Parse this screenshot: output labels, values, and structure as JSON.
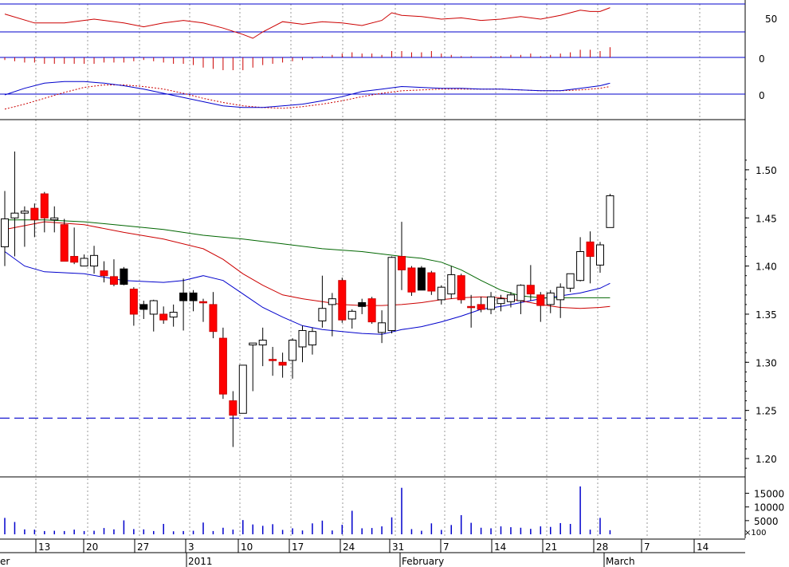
{
  "chart_data": {
    "type": "candlestick",
    "colors": {
      "up_fill": "#ffffff",
      "down_fill": "#ff0000",
      "down_fill_alt": "#000000",
      "ma_short": "#cc0000",
      "ma_long": "#006600",
      "band": "#0000cc",
      "volume": "#0000cc",
      "grid": "#999999",
      "axis": "#000000"
    },
    "date_axis": {
      "day_labels": [
        "13",
        "20",
        "27",
        "3",
        "10",
        "17",
        "24",
        "31",
        "7",
        "14",
        "21",
        "28",
        "7",
        "14"
      ],
      "month_labels": [
        "er",
        "2011",
        "February",
        "March"
      ]
    },
    "price_panel": {
      "ylim": [
        1.18,
        1.52
      ],
      "ticks": [
        "1.20",
        "1.25",
        "1.30",
        "1.35",
        "1.40",
        "1.45",
        "1.50"
      ],
      "tick_values": [
        1.2,
        1.25,
        1.3,
        1.35,
        1.4,
        1.45,
        1.5
      ],
      "support_line": 1.242,
      "candles": [
        {
          "i": 0,
          "o": 1.42,
          "h": 1.478,
          "l": 1.4,
          "c": 1.449
        },
        {
          "i": 1,
          "o": 1.45,
          "h": 1.519,
          "l": 1.41,
          "c": 1.455
        },
        {
          "i": 2,
          "o": 1.455,
          "h": 1.462,
          "l": 1.42,
          "c": 1.457
        },
        {
          "i": 3,
          "o": 1.46,
          "h": 1.465,
          "l": 1.43,
          "c": 1.448
        },
        {
          "i": 4,
          "o": 1.475,
          "h": 1.477,
          "l": 1.435,
          "c": 1.45
        },
        {
          "i": 5,
          "o": 1.448,
          "h": 1.462,
          "l": 1.435,
          "c": 1.45
        },
        {
          "i": 6,
          "o": 1.443,
          "h": 1.449,
          "l": 1.405,
          "c": 1.405
        },
        {
          "i": 7,
          "o": 1.41,
          "h": 1.44,
          "l": 1.402,
          "c": 1.404
        },
        {
          "i": 8,
          "o": 1.4,
          "h": 1.412,
          "l": 1.402,
          "c": 1.408
        },
        {
          "i": 9,
          "o": 1.4,
          "h": 1.421,
          "l": 1.392,
          "c": 1.411
        },
        {
          "i": 10,
          "o": 1.395,
          "h": 1.405,
          "l": 1.383,
          "c": 1.39
        },
        {
          "i": 11,
          "o": 1.389,
          "h": 1.407,
          "l": 1.379,
          "c": 1.381
        },
        {
          "i": 12,
          "o": 1.397,
          "h": 1.399,
          "l": 1.38,
          "c": 1.381,
          "dark": true
        },
        {
          "i": 13,
          "o": 1.376,
          "h": 1.378,
          "l": 1.338,
          "c": 1.35
        },
        {
          "i": 14,
          "o": 1.36,
          "h": 1.364,
          "l": 1.345,
          "c": 1.355,
          "dark": true
        },
        {
          "i": 15,
          "o": 1.35,
          "h": 1.365,
          "l": 1.332,
          "c": 1.364
        },
        {
          "i": 16,
          "o": 1.35,
          "h": 1.358,
          "l": 1.34,
          "c": 1.344
        },
        {
          "i": 17,
          "o": 1.347,
          "h": 1.36,
          "l": 1.337,
          "c": 1.352
        },
        {
          "i": 18,
          "o": 1.372,
          "h": 1.387,
          "l": 1.333,
          "c": 1.364,
          "dark": true
        },
        {
          "i": 19,
          "o": 1.372,
          "h": 1.375,
          "l": 1.353,
          "c": 1.364,
          "dark": true
        },
        {
          "i": 20,
          "o": 1.363,
          "h": 1.366,
          "l": 1.342,
          "c": 1.362
        },
        {
          "i": 21,
          "o": 1.36,
          "h": 1.373,
          "l": 1.325,
          "c": 1.332
        },
        {
          "i": 22,
          "o": 1.325,
          "h": 1.336,
          "l": 1.262,
          "c": 1.267
        },
        {
          "i": 23,
          "o": 1.26,
          "h": 1.27,
          "l": 1.212,
          "c": 1.245
        },
        {
          "i": 24,
          "o": 1.247,
          "h": 1.297,
          "l": 1.247,
          "c": 1.297
        },
        {
          "i": 25,
          "o": 1.318,
          "h": 1.32,
          "l": 1.27,
          "c": 1.32
        },
        {
          "i": 26,
          "o": 1.318,
          "h": 1.336,
          "l": 1.296,
          "c": 1.323
        },
        {
          "i": 27,
          "o": 1.303,
          "h": 1.316,
          "l": 1.286,
          "c": 1.302
        },
        {
          "i": 28,
          "o": 1.3,
          "h": 1.31,
          "l": 1.284,
          "c": 1.297
        },
        {
          "i": 29,
          "o": 1.302,
          "h": 1.325,
          "l": 1.283,
          "c": 1.323
        },
        {
          "i": 30,
          "o": 1.316,
          "h": 1.338,
          "l": 1.3,
          "c": 1.333
        },
        {
          "i": 31,
          "o": 1.318,
          "h": 1.336,
          "l": 1.308,
          "c": 1.332
        },
        {
          "i": 32,
          "o": 1.343,
          "h": 1.39,
          "l": 1.336,
          "c": 1.356
        },
        {
          "i": 33,
          "o": 1.36,
          "h": 1.372,
          "l": 1.327,
          "c": 1.366
        },
        {
          "i": 34,
          "o": 1.385,
          "h": 1.388,
          "l": 1.341,
          "c": 1.344
        },
        {
          "i": 35,
          "o": 1.345,
          "h": 1.355,
          "l": 1.335,
          "c": 1.353
        },
        {
          "i": 36,
          "o": 1.362,
          "h": 1.366,
          "l": 1.35,
          "c": 1.358,
          "dark": true
        },
        {
          "i": 37,
          "o": 1.366,
          "h": 1.368,
          "l": 1.34,
          "c": 1.342
        },
        {
          "i": 38,
          "o": 1.331,
          "h": 1.354,
          "l": 1.32,
          "c": 1.341
        },
        {
          "i": 39,
          "o": 1.333,
          "h": 1.41,
          "l": 1.33,
          "c": 1.409
        },
        {
          "i": 40,
          "o": 1.41,
          "h": 1.446,
          "l": 1.375,
          "c": 1.396
        },
        {
          "i": 41,
          "o": 1.398,
          "h": 1.4,
          "l": 1.369,
          "c": 1.373
        },
        {
          "i": 42,
          "o": 1.398,
          "h": 1.4,
          "l": 1.375,
          "c": 1.375,
          "dark": true
        },
        {
          "i": 43,
          "o": 1.393,
          "h": 1.395,
          "l": 1.37,
          "c": 1.374
        },
        {
          "i": 44,
          "o": 1.365,
          "h": 1.38,
          "l": 1.36,
          "c": 1.378
        },
        {
          "i": 45,
          "o": 1.371,
          "h": 1.4,
          "l": 1.366,
          "c": 1.391
        },
        {
          "i": 46,
          "o": 1.39,
          "h": 1.392,
          "l": 1.361,
          "c": 1.365
        },
        {
          "i": 47,
          "o": 1.358,
          "h": 1.37,
          "l": 1.336,
          "c": 1.357
        },
        {
          "i": 48,
          "o": 1.36,
          "h": 1.368,
          "l": 1.352,
          "c": 1.355
        },
        {
          "i": 49,
          "o": 1.355,
          "h": 1.373,
          "l": 1.35,
          "c": 1.368
        },
        {
          "i": 50,
          "o": 1.361,
          "h": 1.37,
          "l": 1.353,
          "c": 1.366
        },
        {
          "i": 51,
          "o": 1.363,
          "h": 1.373,
          "l": 1.357,
          "c": 1.37
        },
        {
          "i": 52,
          "o": 1.364,
          "h": 1.381,
          "l": 1.35,
          "c": 1.38
        },
        {
          "i": 53,
          "o": 1.38,
          "h": 1.401,
          "l": 1.364,
          "c": 1.371
        },
        {
          "i": 54,
          "o": 1.37,
          "h": 1.373,
          "l": 1.342,
          "c": 1.359
        },
        {
          "i": 55,
          "o": 1.36,
          "h": 1.375,
          "l": 1.351,
          "c": 1.372
        },
        {
          "i": 56,
          "o": 1.365,
          "h": 1.382,
          "l": 1.346,
          "c": 1.378
        },
        {
          "i": 57,
          "o": 1.377,
          "h": 1.392,
          "l": 1.373,
          "c": 1.392
        },
        {
          "i": 58,
          "o": 1.385,
          "h": 1.43,
          "l": 1.384,
          "c": 1.415
        },
        {
          "i": 59,
          "o": 1.425,
          "h": 1.436,
          "l": 1.382,
          "c": 1.41
        },
        {
          "i": 60,
          "o": 1.401,
          "h": 1.425,
          "l": 1.393,
          "c": 1.422
        },
        {
          "i": 61,
          "o": 1.44,
          "h": 1.475,
          "l": 1.44,
          "c": 1.473
        }
      ],
      "ma_short": [
        [
          0,
          1.438
        ],
        [
          4,
          1.446
        ],
        [
          8,
          1.443
        ],
        [
          12,
          1.435
        ],
        [
          16,
          1.428
        ],
        [
          20,
          1.418
        ],
        [
          22,
          1.407
        ],
        [
          24,
          1.392
        ],
        [
          26,
          1.38
        ],
        [
          28,
          1.37
        ],
        [
          30,
          1.366
        ],
        [
          32,
          1.363
        ],
        [
          34,
          1.36
        ],
        [
          36,
          1.359
        ],
        [
          38,
          1.359
        ],
        [
          40,
          1.36
        ],
        [
          42,
          1.362
        ],
        [
          44,
          1.365
        ],
        [
          46,
          1.367
        ],
        [
          48,
          1.368
        ],
        [
          50,
          1.367
        ],
        [
          52,
          1.364
        ],
        [
          54,
          1.36
        ],
        [
          56,
          1.357
        ],
        [
          58,
          1.356
        ],
        [
          60,
          1.357
        ],
        [
          61,
          1.358
        ]
      ],
      "ma_long": [
        [
          0,
          1.448
        ],
        [
          4,
          1.448
        ],
        [
          8,
          1.446
        ],
        [
          12,
          1.442
        ],
        [
          16,
          1.438
        ],
        [
          20,
          1.432
        ],
        [
          24,
          1.428
        ],
        [
          28,
          1.423
        ],
        [
          32,
          1.418
        ],
        [
          36,
          1.415
        ],
        [
          40,
          1.41
        ],
        [
          42,
          1.408
        ],
        [
          44,
          1.404
        ],
        [
          46,
          1.396
        ],
        [
          48,
          1.385
        ],
        [
          50,
          1.375
        ],
        [
          52,
          1.369
        ],
        [
          54,
          1.367
        ],
        [
          58,
          1.367
        ],
        [
          61,
          1.367
        ]
      ],
      "lower_band": [
        [
          0,
          1.415
        ],
        [
          2,
          1.4
        ],
        [
          4,
          1.394
        ],
        [
          8,
          1.392
        ],
        [
          12,
          1.385
        ],
        [
          16,
          1.383
        ],
        [
          18,
          1.385
        ],
        [
          20,
          1.39
        ],
        [
          22,
          1.385
        ],
        [
          24,
          1.371
        ],
        [
          26,
          1.357
        ],
        [
          28,
          1.347
        ],
        [
          30,
          1.338
        ],
        [
          32,
          1.334
        ],
        [
          34,
          1.332
        ],
        [
          36,
          1.33
        ],
        [
          38,
          1.329
        ],
        [
          40,
          1.334
        ],
        [
          42,
          1.337
        ],
        [
          44,
          1.342
        ],
        [
          46,
          1.348
        ],
        [
          48,
          1.355
        ],
        [
          50,
          1.358
        ],
        [
          52,
          1.362
        ],
        [
          54,
          1.366
        ],
        [
          56,
          1.369
        ],
        [
          58,
          1.372
        ],
        [
          60,
          1.377
        ],
        [
          61,
          1.382
        ]
      ]
    },
    "volume_panel": {
      "ylim": [
        0,
        18000
      ],
      "ticks": [
        "5000",
        "10000",
        "15000"
      ],
      "tick_values": [
        5000,
        10000,
        15000
      ],
      "multiplier_label": "×100",
      "values": [
        6000,
        4500,
        1800,
        1700,
        1200,
        1300,
        1200,
        1700,
        1200,
        1300,
        2300,
        1800,
        5100,
        1900,
        1800,
        1200,
        3800,
        1100,
        1200,
        1300,
        4300,
        1200,
        2400,
        1700,
        5200,
        3600,
        3100,
        3700,
        1600,
        2200,
        1400,
        4000,
        5000,
        1400,
        3500,
        8600,
        2200,
        2300,
        2900,
        6200,
        17000,
        1900,
        1300,
        4000,
        1600,
        3400,
        7000,
        4200,
        2400,
        2200,
        2900,
        2600,
        2400,
        2000,
        2900,
        2700,
        4100,
        3800,
        17500,
        1700,
        6000,
        1500
      ]
    },
    "rsi_panel": {
      "ticks": [
        "50"
      ],
      "values": [
        [
          0,
          64
        ],
        [
          3,
          57
        ],
        [
          6,
          57
        ],
        [
          9,
          60
        ],
        [
          12,
          57
        ],
        [
          14,
          54
        ],
        [
          16,
          57
        ],
        [
          18,
          59
        ],
        [
          20,
          57
        ],
        [
          22,
          53
        ],
        [
          24,
          48
        ],
        [
          25,
          45
        ],
        [
          26,
          50
        ],
        [
          28,
          58
        ],
        [
          30,
          56
        ],
        [
          32,
          58
        ],
        [
          34,
          57
        ],
        [
          36,
          55
        ],
        [
          38,
          59
        ],
        [
          39,
          65
        ],
        [
          40,
          63
        ],
        [
          42,
          62
        ],
        [
          44,
          60
        ],
        [
          46,
          61
        ],
        [
          48,
          59
        ],
        [
          50,
          60
        ],
        [
          52,
          62
        ],
        [
          54,
          60
        ],
        [
          56,
          63
        ],
        [
          58,
          67
        ],
        [
          59,
          66
        ],
        [
          60,
          66
        ],
        [
          61,
          69
        ]
      ]
    },
    "macd_hist_panel": {
      "ticks": [
        "0"
      ],
      "values": [
        -2,
        -3,
        -4,
        -4,
        -5,
        -5,
        -5,
        -5,
        -5,
        -5,
        -4,
        -4,
        -4,
        -3,
        -2,
        -3,
        -4,
        -5,
        -5,
        -6,
        -8,
        -9,
        -10,
        -10,
        -10,
        -8,
        -6,
        -5,
        -4,
        -3,
        -2,
        -1,
        1,
        2,
        3,
        4,
        3,
        3,
        2,
        5,
        5,
        4,
        4,
        5,
        3,
        2,
        1,
        1,
        0,
        1,
        1,
        2,
        2,
        3,
        1,
        2,
        3,
        4,
        6,
        6,
        5,
        8
      ]
    },
    "macd_panel": {
      "ticks": [
        "0"
      ],
      "macd": [
        [
          0,
          -1
        ],
        [
          2,
          7
        ],
        [
          4,
          13
        ],
        [
          6,
          15
        ],
        [
          8,
          15
        ],
        [
          10,
          13
        ],
        [
          12,
          10
        ],
        [
          14,
          6
        ],
        [
          16,
          1
        ],
        [
          18,
          -4
        ],
        [
          20,
          -9
        ],
        [
          22,
          -14
        ],
        [
          24,
          -16
        ],
        [
          26,
          -16
        ],
        [
          28,
          -14
        ],
        [
          30,
          -12
        ],
        [
          32,
          -8
        ],
        [
          34,
          -3
        ],
        [
          36,
          3
        ],
        [
          38,
          6
        ],
        [
          40,
          9
        ],
        [
          42,
          8
        ],
        [
          44,
          7
        ],
        [
          46,
          7
        ],
        [
          48,
          6
        ],
        [
          50,
          6
        ],
        [
          52,
          5
        ],
        [
          54,
          4
        ],
        [
          56,
          4
        ],
        [
          58,
          7
        ],
        [
          60,
          10
        ],
        [
          61,
          13
        ]
      ],
      "signal": [
        [
          0,
          -18
        ],
        [
          2,
          -12
        ],
        [
          4,
          -5
        ],
        [
          6,
          2
        ],
        [
          8,
          8
        ],
        [
          10,
          11
        ],
        [
          12,
          11
        ],
        [
          14,
          9
        ],
        [
          16,
          6
        ],
        [
          18,
          1
        ],
        [
          20,
          -5
        ],
        [
          22,
          -10
        ],
        [
          24,
          -14
        ],
        [
          26,
          -16
        ],
        [
          28,
          -17
        ],
        [
          30,
          -15
        ],
        [
          32,
          -12
        ],
        [
          34,
          -8
        ],
        [
          36,
          -3
        ],
        [
          38,
          1
        ],
        [
          40,
          4
        ],
        [
          42,
          5
        ],
        [
          44,
          6
        ],
        [
          46,
          6
        ],
        [
          48,
          6
        ],
        [
          50,
          6
        ],
        [
          52,
          5
        ],
        [
          54,
          4
        ],
        [
          56,
          4
        ],
        [
          58,
          5
        ],
        [
          60,
          7
        ],
        [
          61,
          9
        ]
      ]
    }
  }
}
